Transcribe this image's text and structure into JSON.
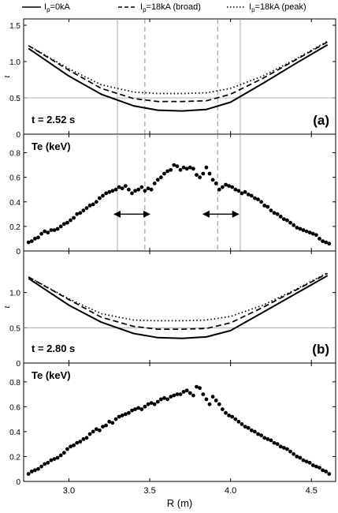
{
  "legend": [
    {
      "label_main": "I",
      "label_sub": "p",
      "label_rest": "=0kA",
      "style": "solid"
    },
    {
      "label_main": "I",
      "label_sub": "p",
      "label_rest": "=18kA (broad)",
      "style": "dashed"
    },
    {
      "label_main": "I",
      "label_sub": "p",
      "label_rest": "=18kA (peak)",
      "style": "dotted"
    }
  ],
  "x_axis": {
    "label": "R (m)",
    "range": [
      2.72,
      4.65
    ],
    "ticks": [
      "3.0",
      "3.5",
      "4.0",
      "4.5"
    ]
  },
  "chart_data": [
    {
      "type": "line",
      "panel_tag": "(a)",
      "annotation": "t = 2.52 s",
      "ylabel": "ι",
      "ylim": [
        0,
        1.5
      ],
      "yticks": [
        "0",
        "0.5",
        "1.0",
        "1.5"
      ],
      "series": [
        {
          "name": "Ip=0kA",
          "style": "solid",
          "x": [
            2.75,
            3.0,
            3.2,
            3.4,
            3.55,
            3.7,
            3.85,
            4.0,
            4.2,
            4.4,
            4.6
          ],
          "y": [
            1.18,
            0.8,
            0.55,
            0.39,
            0.33,
            0.32,
            0.34,
            0.44,
            0.7,
            0.97,
            1.23
          ]
        },
        {
          "name": "Ip=18kA (broad)",
          "style": "dashed",
          "x": [
            2.75,
            3.0,
            3.2,
            3.4,
            3.55,
            3.7,
            3.85,
            4.0,
            4.2,
            4.4,
            4.6
          ],
          "y": [
            1.22,
            0.88,
            0.63,
            0.49,
            0.45,
            0.45,
            0.46,
            0.55,
            0.77,
            1.02,
            1.27
          ]
        },
        {
          "name": "Ip=18kA (peak)",
          "style": "dotted",
          "x": [
            2.75,
            3.0,
            3.2,
            3.4,
            3.55,
            3.7,
            3.85,
            4.0,
            4.2,
            4.4,
            4.6
          ],
          "y": [
            1.22,
            0.9,
            0.68,
            0.58,
            0.56,
            0.56,
            0.57,
            0.63,
            0.8,
            1.03,
            1.28
          ]
        }
      ],
      "hlines": [
        0.5
      ],
      "vlines_solid": [
        3.3,
        4.06
      ],
      "vlines_dashed": [
        3.47,
        3.92
      ]
    },
    {
      "type": "scatter",
      "annotation": "Te (keV)",
      "ylim": [
        0,
        0.9
      ],
      "yticks": [
        "0",
        "0.2",
        "0.4",
        "0.6",
        "0.8"
      ],
      "points": [
        [
          2.75,
          0.07
        ],
        [
          2.77,
          0.08
        ],
        [
          2.79,
          0.1
        ],
        [
          2.81,
          0.11
        ],
        [
          2.83,
          0.14
        ],
        [
          2.85,
          0.16
        ],
        [
          2.87,
          0.15
        ],
        [
          2.89,
          0.17
        ],
        [
          2.91,
          0.17
        ],
        [
          2.93,
          0.18
        ],
        [
          2.95,
          0.2
        ],
        [
          2.97,
          0.22
        ],
        [
          2.99,
          0.23
        ],
        [
          3.01,
          0.25
        ],
        [
          3.03,
          0.27
        ],
        [
          3.05,
          0.3
        ],
        [
          3.07,
          0.31
        ],
        [
          3.09,
          0.33
        ],
        [
          3.11,
          0.35
        ],
        [
          3.13,
          0.37
        ],
        [
          3.15,
          0.38
        ],
        [
          3.17,
          0.4
        ],
        [
          3.19,
          0.43
        ],
        [
          3.21,
          0.45
        ],
        [
          3.23,
          0.47
        ],
        [
          3.25,
          0.48
        ],
        [
          3.27,
          0.49
        ],
        [
          3.29,
          0.5
        ],
        [
          3.31,
          0.52
        ],
        [
          3.33,
          0.51
        ],
        [
          3.35,
          0.53
        ],
        [
          3.37,
          0.5
        ],
        [
          3.39,
          0.47
        ],
        [
          3.41,
          0.49
        ],
        [
          3.43,
          0.5
        ],
        [
          3.45,
          0.52
        ],
        [
          3.47,
          0.49
        ],
        [
          3.49,
          0.51
        ],
        [
          3.51,
          0.5
        ],
        [
          3.53,
          0.55
        ],
        [
          3.55,
          0.58
        ],
        [
          3.57,
          0.6
        ],
        [
          3.59,
          0.63
        ],
        [
          3.61,
          0.65
        ],
        [
          3.63,
          0.66
        ],
        [
          3.65,
          0.7
        ],
        [
          3.67,
          0.69
        ],
        [
          3.69,
          0.66
        ],
        [
          3.71,
          0.68
        ],
        [
          3.73,
          0.67
        ],
        [
          3.75,
          0.68
        ],
        [
          3.77,
          0.67
        ],
        [
          3.79,
          0.62
        ],
        [
          3.81,
          0.6
        ],
        [
          3.83,
          0.63
        ],
        [
          3.85,
          0.68
        ],
        [
          3.87,
          0.63
        ],
        [
          3.89,
          0.58
        ],
        [
          3.91,
          0.55
        ],
        [
          3.93,
          0.5
        ],
        [
          3.95,
          0.52
        ],
        [
          3.97,
          0.54
        ],
        [
          3.99,
          0.53
        ],
        [
          4.01,
          0.52
        ],
        [
          4.03,
          0.5
        ],
        [
          4.05,
          0.49
        ],
        [
          4.07,
          0.47
        ],
        [
          4.09,
          0.48
        ],
        [
          4.11,
          0.46
        ],
        [
          4.13,
          0.45
        ],
        [
          4.15,
          0.43
        ],
        [
          4.17,
          0.42
        ],
        [
          4.19,
          0.4
        ],
        [
          4.21,
          0.37
        ],
        [
          4.23,
          0.36
        ],
        [
          4.25,
          0.33
        ],
        [
          4.27,
          0.31
        ],
        [
          4.29,
          0.3
        ],
        [
          4.31,
          0.28
        ],
        [
          4.33,
          0.26
        ],
        [
          4.35,
          0.25
        ],
        [
          4.37,
          0.23
        ],
        [
          4.39,
          0.21
        ],
        [
          4.41,
          0.19
        ],
        [
          4.43,
          0.18
        ],
        [
          4.45,
          0.17
        ],
        [
          4.47,
          0.16
        ],
        [
          4.49,
          0.15
        ],
        [
          4.51,
          0.14
        ],
        [
          4.53,
          0.13
        ],
        [
          4.55,
          0.1
        ],
        [
          4.57,
          0.08
        ],
        [
          4.59,
          0.07
        ],
        [
          4.61,
          0.06
        ]
      ],
      "arrows": [
        {
          "from": 3.28,
          "to": 3.5,
          "y": 0.3
        },
        {
          "from": 3.83,
          "to": 4.05,
          "y": 0.3
        }
      ],
      "vlines_solid": [
        3.3,
        4.06
      ],
      "vlines_dashed": [
        3.47,
        3.92
      ]
    },
    {
      "type": "line",
      "panel_tag": "(b)",
      "annotation": "t = 2.80 s",
      "ylabel": "ι",
      "ylim": [
        0,
        1.5
      ],
      "yticks": [
        "0",
        "0.5",
        "1.0"
      ],
      "series": [
        {
          "name": "Ip=0kA",
          "style": "solid",
          "x": [
            2.75,
            3.0,
            3.2,
            3.4,
            3.55,
            3.7,
            3.85,
            4.0,
            4.2,
            4.4,
            4.6
          ],
          "y": [
            1.2,
            0.82,
            0.58,
            0.42,
            0.36,
            0.35,
            0.37,
            0.46,
            0.72,
            0.98,
            1.24
          ]
        },
        {
          "name": "Ip=18kA (broad)",
          "style": "dashed",
          "x": [
            2.75,
            3.0,
            3.2,
            3.4,
            3.55,
            3.7,
            3.85,
            4.0,
            4.2,
            4.4,
            4.6
          ],
          "y": [
            1.22,
            0.9,
            0.65,
            0.52,
            0.48,
            0.48,
            0.49,
            0.57,
            0.79,
            1.03,
            1.27
          ]
        },
        {
          "name": "Ip=18kA (peak)",
          "style": "dotted",
          "x": [
            2.75,
            3.0,
            3.2,
            3.4,
            3.55,
            3.7,
            3.85,
            4.0,
            4.2,
            4.4,
            4.6
          ],
          "y": [
            1.22,
            0.91,
            0.7,
            0.61,
            0.6,
            0.6,
            0.61,
            0.66,
            0.82,
            1.04,
            1.28
          ]
        }
      ],
      "hlines": [
        0.5
      ]
    },
    {
      "type": "scatter",
      "annotation": "Te (keV)",
      "ylim": [
        0,
        0.9
      ],
      "yticks": [
        "0",
        "0.2",
        "0.4",
        "0.6",
        "0.8"
      ],
      "points": [
        [
          2.75,
          0.06
        ],
        [
          2.77,
          0.08
        ],
        [
          2.79,
          0.09
        ],
        [
          2.81,
          0.1
        ],
        [
          2.83,
          0.12
        ],
        [
          2.85,
          0.14
        ],
        [
          2.87,
          0.15
        ],
        [
          2.89,
          0.17
        ],
        [
          2.91,
          0.18
        ],
        [
          2.93,
          0.19
        ],
        [
          2.95,
          0.21
        ],
        [
          2.97,
          0.23
        ],
        [
          2.99,
          0.26
        ],
        [
          3.01,
          0.28
        ],
        [
          3.03,
          0.29
        ],
        [
          3.05,
          0.31
        ],
        [
          3.07,
          0.32
        ],
        [
          3.09,
          0.34
        ],
        [
          3.11,
          0.35
        ],
        [
          3.13,
          0.38
        ],
        [
          3.15,
          0.4
        ],
        [
          3.17,
          0.42
        ],
        [
          3.19,
          0.41
        ],
        [
          3.21,
          0.44
        ],
        [
          3.23,
          0.45
        ],
        [
          3.25,
          0.48
        ],
        [
          3.27,
          0.47
        ],
        [
          3.29,
          0.5
        ],
        [
          3.31,
          0.52
        ],
        [
          3.33,
          0.53
        ],
        [
          3.35,
          0.54
        ],
        [
          3.37,
          0.55
        ],
        [
          3.39,
          0.57
        ],
        [
          3.41,
          0.58
        ],
        [
          3.43,
          0.59
        ],
        [
          3.45,
          0.58
        ],
        [
          3.47,
          0.6
        ],
        [
          3.49,
          0.62
        ],
        [
          3.51,
          0.63
        ],
        [
          3.53,
          0.62
        ],
        [
          3.55,
          0.64
        ],
        [
          3.57,
          0.66
        ],
        [
          3.59,
          0.67
        ],
        [
          3.61,
          0.66
        ],
        [
          3.63,
          0.68
        ],
        [
          3.65,
          0.69
        ],
        [
          3.67,
          0.7
        ],
        [
          3.69,
          0.7
        ],
        [
          3.71,
          0.72
        ],
        [
          3.73,
          0.73
        ],
        [
          3.75,
          0.71
        ],
        [
          3.77,
          0.69
        ],
        [
          3.79,
          0.76
        ],
        [
          3.81,
          0.75
        ],
        [
          3.83,
          0.7
        ],
        [
          3.85,
          0.66
        ],
        [
          3.87,
          0.62
        ],
        [
          3.89,
          0.68
        ],
        [
          3.91,
          0.65
        ],
        [
          3.93,
          0.62
        ],
        [
          3.95,
          0.58
        ],
        [
          3.97,
          0.55
        ],
        [
          3.99,
          0.53
        ],
        [
          4.01,
          0.52
        ],
        [
          4.03,
          0.5
        ],
        [
          4.05,
          0.48
        ],
        [
          4.07,
          0.46
        ],
        [
          4.09,
          0.44
        ],
        [
          4.11,
          0.43
        ],
        [
          4.13,
          0.41
        ],
        [
          4.15,
          0.4
        ],
        [
          4.17,
          0.38
        ],
        [
          4.19,
          0.37
        ],
        [
          4.21,
          0.35
        ],
        [
          4.23,
          0.34
        ],
        [
          4.25,
          0.33
        ],
        [
          4.27,
          0.31
        ],
        [
          4.29,
          0.3
        ],
        [
          4.31,
          0.28
        ],
        [
          4.33,
          0.27
        ],
        [
          4.35,
          0.26
        ],
        [
          4.37,
          0.24
        ],
        [
          4.39,
          0.22
        ],
        [
          4.41,
          0.2
        ],
        [
          4.43,
          0.19
        ],
        [
          4.45,
          0.17
        ],
        [
          4.47,
          0.16
        ],
        [
          4.49,
          0.15
        ],
        [
          4.51,
          0.13
        ],
        [
          4.53,
          0.12
        ],
        [
          4.55,
          0.11
        ],
        [
          4.57,
          0.09
        ],
        [
          4.59,
          0.08
        ],
        [
          4.61,
          0.06
        ]
      ]
    }
  ]
}
